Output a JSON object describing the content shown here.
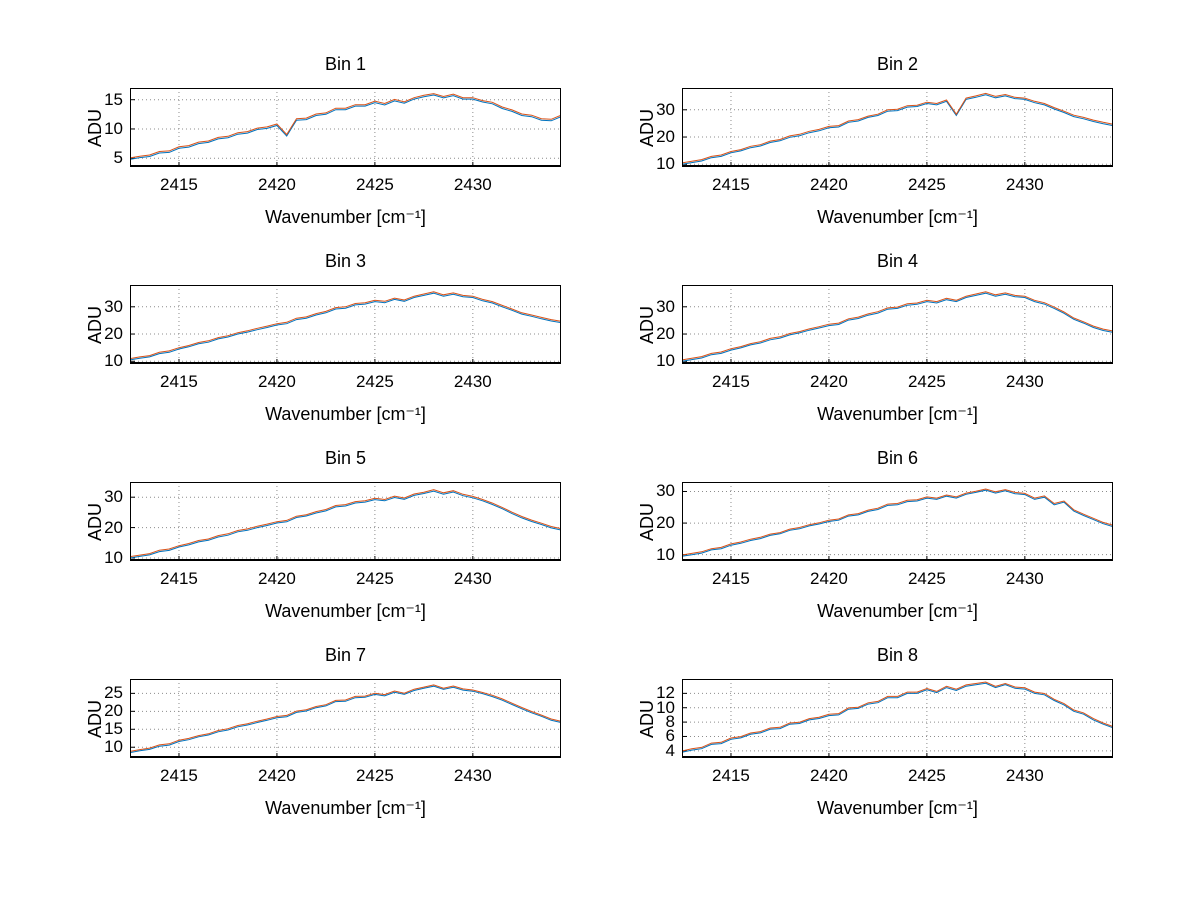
{
  "figure": {
    "background_color": "#ffffff",
    "text_color": "#000000",
    "grid_color": "#8c8c8c",
    "axis_color": "#000000"
  },
  "chart_data": [
    {
      "type": "line",
      "title": "Bin 1",
      "xlabel": "Wavenumber [cm⁻¹]",
      "ylabel": "ADU",
      "grid": true,
      "legend": "none",
      "xlim": [
        2412.5,
        2434.5
      ],
      "x_ticks": [
        2415,
        2420,
        2425,
        2430
      ],
      "ylim": [
        3.5,
        17
      ],
      "y_ticks": [
        5,
        10,
        15
      ],
      "x_start": 2412.5,
      "x_step": 0.5,
      "series": [
        {
          "name": "trace-1",
          "color": "#0072bd",
          "values": [
            4.8,
            5.1,
            5.3,
            5.9,
            6.0,
            6.7,
            6.9,
            7.5,
            7.7,
            8.3,
            8.5,
            9.1,
            9.3,
            9.9,
            10.1,
            10.6,
            8.8,
            11.5,
            11.6,
            12.3,
            12.5,
            13.3,
            13.3,
            13.9,
            13.9,
            14.5,
            14.1,
            14.8,
            14.4,
            15.1,
            15.5,
            15.8,
            15.3,
            15.7,
            15.1,
            15.1,
            14.6,
            14.3,
            13.5,
            13.0,
            12.3,
            12.1,
            11.5,
            11.4,
            12.1
          ]
        },
        {
          "name": "trace-2",
          "color": "#d95319",
          "offset_from_trace_1": 0.25
        }
      ]
    },
    {
      "type": "line",
      "title": "Bin 2",
      "xlabel": "Wavenumber [cm⁻¹]",
      "ylabel": "ADU",
      "grid": true,
      "legend": "none",
      "xlim": [
        2412.5,
        2434.5
      ],
      "x_ticks": [
        2415,
        2420,
        2425,
        2430
      ],
      "ylim": [
        9,
        38
      ],
      "y_ticks": [
        10,
        20,
        30
      ],
      "x_start": 2412.5,
      "x_step": 0.5,
      "series": [
        {
          "name": "trace-1",
          "color": "#0072bd",
          "values": [
            10.0,
            10.6,
            11.2,
            12.4,
            12.9,
            14.2,
            14.9,
            16.1,
            16.7,
            18.0,
            18.6,
            19.9,
            20.5,
            21.6,
            22.3,
            23.4,
            23.7,
            25.4,
            25.9,
            27.2,
            27.9,
            29.5,
            29.7,
            31.0,
            31.2,
            32.3,
            31.8,
            33.1,
            27.9,
            33.8,
            34.6,
            35.5,
            34.4,
            35.1,
            34.1,
            33.8,
            32.6,
            31.8,
            30.3,
            29.0,
            27.5,
            26.7,
            25.7,
            24.9,
            24.2
          ]
        },
        {
          "name": "trace-2",
          "color": "#d95319",
          "offset_from_trace_1": 0.5
        }
      ]
    },
    {
      "type": "line",
      "title": "Bin 3",
      "xlabel": "Wavenumber [cm⁻¹]",
      "ylabel": "ADU",
      "grid": true,
      "legend": "none",
      "xlim": [
        2412.5,
        2434.5
      ],
      "x_ticks": [
        2415,
        2420,
        2425,
        2430
      ],
      "ylim": [
        9,
        38
      ],
      "y_ticks": [
        10,
        20,
        30
      ],
      "x_start": 2412.5,
      "x_step": 0.5,
      "series": [
        {
          "name": "trace-1",
          "color": "#0072bd",
          "values": [
            10.5,
            11.1,
            11.6,
            12.8,
            13.3,
            14.5,
            15.3,
            16.4,
            17.0,
            18.2,
            18.9,
            20.0,
            20.7,
            21.6,
            22.4,
            23.3,
            23.8,
            25.3,
            25.8,
            27.0,
            27.8,
            29.2,
            29.5,
            30.7,
            31.0,
            31.9,
            31.5,
            32.7,
            32.0,
            33.4,
            34.2,
            35.0,
            33.9,
            34.6,
            33.7,
            33.4,
            32.2,
            31.4,
            30.0,
            28.7,
            27.3,
            26.5,
            25.6,
            24.8,
            24.2
          ]
        },
        {
          "name": "trace-2",
          "color": "#d95319",
          "offset_from_trace_1": 0.5
        }
      ]
    },
    {
      "type": "line",
      "title": "Bin 4",
      "xlabel": "Wavenumber [cm⁻¹]",
      "ylabel": "ADU",
      "grid": true,
      "legend": "none",
      "xlim": [
        2412.5,
        2434.5
      ],
      "x_ticks": [
        2415,
        2420,
        2425,
        2430
      ],
      "ylim": [
        9,
        38
      ],
      "y_ticks": [
        10,
        20,
        30
      ],
      "x_start": 2412.5,
      "x_step": 0.5,
      "series": [
        {
          "name": "trace-1",
          "color": "#0072bd",
          "values": [
            10.0,
            10.6,
            11.2,
            12.4,
            12.9,
            14.1,
            14.9,
            16.0,
            16.7,
            17.9,
            18.5,
            19.7,
            20.4,
            21.4,
            22.2,
            23.1,
            23.5,
            25.1,
            25.7,
            26.9,
            27.7,
            29.1,
            29.4,
            30.6,
            30.9,
            31.9,
            31.4,
            32.6,
            31.9,
            33.4,
            34.2,
            35.0,
            33.9,
            34.6,
            33.7,
            33.4,
            31.9,
            31.0,
            29.4,
            27.6,
            25.4,
            24.0,
            22.4,
            21.3,
            20.6
          ]
        },
        {
          "name": "trace-2",
          "color": "#d95319",
          "offset_from_trace_1": 0.5
        }
      ]
    },
    {
      "type": "line",
      "title": "Bin 5",
      "xlabel": "Wavenumber [cm⁻¹]",
      "ylabel": "ADU",
      "grid": true,
      "legend": "none",
      "xlim": [
        2412.5,
        2434.5
      ],
      "x_ticks": [
        2415,
        2420,
        2425,
        2430
      ],
      "ylim": [
        9,
        35
      ],
      "y_ticks": [
        10,
        20,
        30
      ],
      "x_start": 2412.5,
      "x_step": 0.5,
      "series": [
        {
          "name": "trace-1",
          "color": "#0072bd",
          "values": [
            10.0,
            10.5,
            11.0,
            12.1,
            12.5,
            13.6,
            14.3,
            15.3,
            15.8,
            16.9,
            17.5,
            18.6,
            19.1,
            20.0,
            20.7,
            21.5,
            21.9,
            23.3,
            23.8,
            24.8,
            25.5,
            26.8,
            27.1,
            28.1,
            28.4,
            29.2,
            28.8,
            29.9,
            29.3,
            30.6,
            31.2,
            32.0,
            31.0,
            31.7,
            30.5,
            29.8,
            28.8,
            27.6,
            26.2,
            24.6,
            23.2,
            22.0,
            21.0,
            19.9,
            19.2
          ]
        },
        {
          "name": "trace-2",
          "color": "#d95319",
          "offset_from_trace_1": 0.45
        }
      ]
    },
    {
      "type": "line",
      "title": "Bin 6",
      "xlabel": "Wavenumber [cm⁻¹]",
      "ylabel": "ADU",
      "grid": true,
      "legend": "none",
      "xlim": [
        2412.5,
        2434.5
      ],
      "x_ticks": [
        2415,
        2420,
        2425,
        2430
      ],
      "ylim": [
        8,
        33
      ],
      "y_ticks": [
        10,
        20,
        30
      ],
      "x_start": 2412.5,
      "x_step": 0.5,
      "series": [
        {
          "name": "trace-1",
          "color": "#0072bd",
          "values": [
            9.5,
            10.0,
            10.5,
            11.5,
            11.9,
            13.0,
            13.6,
            14.5,
            15.1,
            16.1,
            16.6,
            17.7,
            18.2,
            19.1,
            19.7,
            20.5,
            20.9,
            22.2,
            22.6,
            23.7,
            24.3,
            25.6,
            25.8,
            26.8,
            27.0,
            27.9,
            27.5,
            28.5,
            27.9,
            29.1,
            29.7,
            30.4,
            29.5,
            30.2,
            29.3,
            29.0,
            27.5,
            28.2,
            25.8,
            26.6,
            23.8,
            22.4,
            21.1,
            19.8,
            18.9
          ]
        },
        {
          "name": "trace-2",
          "color": "#d95319",
          "offset_from_trace_1": 0.4
        }
      ]
    },
    {
      "type": "line",
      "title": "Bin 7",
      "xlabel": "Wavenumber [cm⁻¹]",
      "ylabel": "ADU",
      "grid": true,
      "legend": "none",
      "xlim": [
        2412.5,
        2434.5
      ],
      "x_ticks": [
        2415,
        2420,
        2425,
        2430
      ],
      "ylim": [
        7,
        29
      ],
      "y_ticks": [
        10,
        15,
        20,
        25
      ],
      "x_start": 2412.5,
      "x_step": 0.5,
      "series": [
        {
          "name": "trace-1",
          "color": "#0072bd",
          "values": [
            8.5,
            9.0,
            9.4,
            10.3,
            10.6,
            11.6,
            12.1,
            12.9,
            13.4,
            14.3,
            14.8,
            15.7,
            16.2,
            16.9,
            17.5,
            18.2,
            18.5,
            19.7,
            20.1,
            21.0,
            21.5,
            22.7,
            22.8,
            23.8,
            23.9,
            24.7,
            24.3,
            25.3,
            24.7,
            25.8,
            26.4,
            27.0,
            26.1,
            26.7,
            25.9,
            25.6,
            24.9,
            24.1,
            23.1,
            21.9,
            20.7,
            19.6,
            18.6,
            17.5,
            16.9
          ]
        },
        {
          "name": "trace-2",
          "color": "#d95319",
          "offset_from_trace_1": 0.35
        }
      ]
    },
    {
      "type": "line",
      "title": "Bin 8",
      "xlabel": "Wavenumber [cm⁻¹]",
      "ylabel": "ADU",
      "grid": true,
      "legend": "none",
      "xlim": [
        2412.5,
        2434.5
      ],
      "x_ticks": [
        2415,
        2420,
        2425,
        2430
      ],
      "ylim": [
        3,
        14
      ],
      "y_ticks": [
        4,
        6,
        8,
        10,
        12
      ],
      "x_start": 2412.5,
      "x_step": 0.5,
      "series": [
        {
          "name": "trace-1",
          "color": "#0072bd",
          "values": [
            3.8,
            4.1,
            4.3,
            4.9,
            5.0,
            5.6,
            5.8,
            6.3,
            6.5,
            7.0,
            7.1,
            7.7,
            7.8,
            8.3,
            8.5,
            8.9,
            9.0,
            9.8,
            9.9,
            10.5,
            10.7,
            11.4,
            11.4,
            12.0,
            12.0,
            12.5,
            12.1,
            12.8,
            12.4,
            13.0,
            13.2,
            13.4,
            12.8,
            13.2,
            12.7,
            12.6,
            12.0,
            11.8,
            11.0,
            10.4,
            9.5,
            9.1,
            8.3,
            7.7,
            7.2
          ]
        },
        {
          "name": "trace-2",
          "color": "#d95319",
          "offset_from_trace_1": 0.18
        }
      ]
    }
  ]
}
